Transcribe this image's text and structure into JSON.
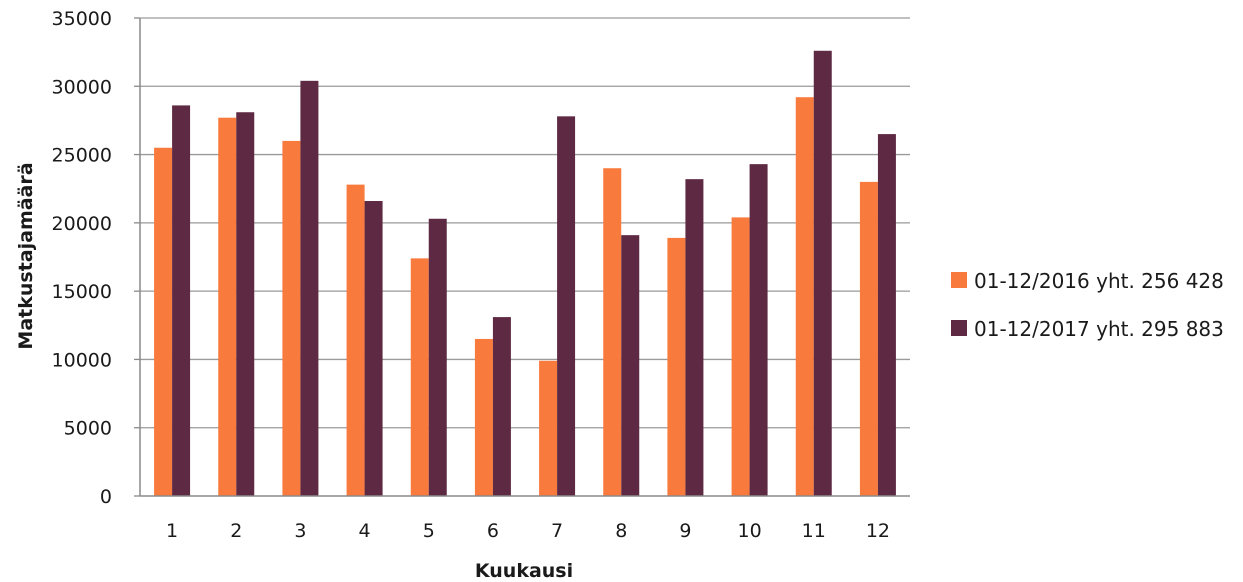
{
  "chart_data": {
    "type": "bar",
    "title": "",
    "xlabel": "Kuukausi",
    "ylabel": "Matkustajamäärä",
    "categories": [
      "1",
      "2",
      "3",
      "4",
      "5",
      "6",
      "7",
      "8",
      "9",
      "10",
      "11",
      "12"
    ],
    "yticks": [
      "0",
      "5000",
      "10000",
      "15000",
      "20000",
      "25000",
      "30000",
      "35000"
    ],
    "ylim": [
      0,
      35000
    ],
    "grid": true,
    "legend_position": "right",
    "series": [
      {
        "name": "01-12/2016 yht. 256 428",
        "color": "#f97a3d",
        "values": [
          25500,
          27700,
          26000,
          22800,
          17400,
          11500,
          9900,
          24000,
          18900,
          20400,
          29200,
          23000
        ]
      },
      {
        "name": "01-12/2017 yht. 295 883",
        "color": "#5e2a43",
        "values": [
          28600,
          28100,
          30400,
          21600,
          20300,
          13100,
          27800,
          19100,
          23200,
          24300,
          32600,
          26500
        ]
      }
    ]
  }
}
